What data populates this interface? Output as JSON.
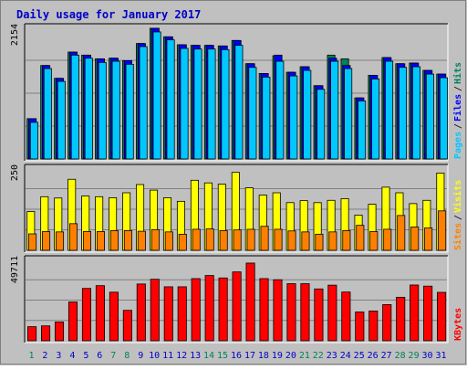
{
  "chart_data": {
    "type": "bar",
    "title": "Daily usage for January 2017",
    "categories": [
      "1",
      "2",
      "3",
      "4",
      "5",
      "6",
      "7",
      "8",
      "9",
      "10",
      "11",
      "12",
      "13",
      "14",
      "15",
      "16",
      "17",
      "18",
      "19",
      "20",
      "21",
      "22",
      "23",
      "24",
      "25",
      "26",
      "27",
      "28",
      "29",
      "30",
      "31"
    ],
    "weekend_days": [
      "1",
      "7",
      "8",
      "14",
      "15",
      "21",
      "22",
      "28",
      "29"
    ],
    "colors": {
      "background": "#c0c0c0",
      "frame": "#7f7f7f",
      "title": "#0000c8",
      "hits": "#00805c",
      "files": "#0000ff",
      "pages": "#00c8ff",
      "visits": "#ffff00",
      "sites": "#ff8000",
      "kbytes": "#ff0000",
      "weekday_label": "#0000c8",
      "weekend_label": "#00805c",
      "grid": "#808080"
    },
    "panels": [
      {
        "id": "traffic",
        "max_label": "2154",
        "ymax": 2154,
        "legend": [
          {
            "name": "Pages",
            "color_key": "pages"
          },
          {
            "name": "Files",
            "color_key": "files"
          },
          {
            "name": "Hits",
            "color_key": "hits"
          }
        ],
        "series": [
          {
            "name": "Hits",
            "color_key": "hits",
            "values": [
              660,
              1530,
              1320,
              1750,
              1700,
              1640,
              1650,
              1610,
              1890,
              2140,
              2000,
              1870,
              1860,
              1860,
              1850,
              1940,
              1560,
              1400,
              1690,
              1420,
              1510,
              1200,
              1700,
              1640,
              1000,
              1370,
              1660,
              1560,
              1570,
              1450,
              1390
            ]
          },
          {
            "name": "Files",
            "color_key": "files",
            "values": [
              660,
              1530,
              1320,
              1750,
              1700,
              1640,
              1650,
              1610,
              1890,
              2140,
              2000,
              1870,
              1860,
              1860,
              1850,
              1940,
              1560,
              1400,
              1700,
              1420,
              1510,
              1200,
              1650,
              1530,
              1000,
              1370,
              1660,
              1560,
              1570,
              1450,
              1390
            ]
          },
          {
            "name": "Pages",
            "color_key": "pages",
            "values": [
              600,
              1480,
              1270,
              1700,
              1650,
              1580,
              1600,
              1550,
              1840,
              2080,
              1950,
              1810,
              1800,
              1800,
              1790,
              1860,
              1500,
              1340,
              1600,
              1360,
              1450,
              1140,
              1600,
              1480,
              950,
              1310,
              1600,
              1500,
              1510,
              1390,
              1330
            ]
          }
        ]
      },
      {
        "id": "visitors",
        "max_label": "250",
        "ymax": 250,
        "legend": [
          {
            "name": "Sites",
            "color_key": "sites"
          },
          {
            "name": "Visits",
            "color_key": "visits"
          }
        ],
        "series": [
          {
            "name": "Visits",
            "color_key": "visits",
            "values": [
              118,
              163,
              159,
              216,
              165,
              163,
              160,
              175,
              200,
              183,
              160,
              149,
              213,
              205,
              201,
              237,
              190,
              168,
              175,
              145,
              151,
              145,
              152,
              157,
              107,
              140,
              192,
              175,
              142,
              152,
              235
            ]
          },
          {
            "name": "Sites",
            "color_key": "sites",
            "values": [
              50,
              57,
              56,
              81,
              57,
              57,
              60,
              60,
              58,
              63,
              56,
              49,
              64,
              65,
              60,
              62,
              64,
              73,
              64,
              59,
              56,
              49,
              56,
              60,
              76,
              57,
              64,
              106,
              71,
              68,
              120
            ]
          }
        ]
      },
      {
        "id": "kbytes",
        "max_label": "49711",
        "ymax": 49711,
        "legend": [
          {
            "name": "KBytes",
            "color_key": "kbytes"
          }
        ],
        "series": [
          {
            "name": "KBytes",
            "color_key": "kbytes",
            "values": [
              8600,
              9100,
              11500,
              23700,
              32000,
              33700,
              29700,
              18600,
              34700,
              37600,
              33000,
              33000,
              38000,
              39900,
              38400,
              42100,
              47500,
              38000,
              37300,
              34900,
              34900,
              31700,
              34000,
              29800,
              17600,
              18200,
              22100,
              26600,
              34100,
              33400,
              29600
            ]
          }
        ]
      }
    ]
  }
}
